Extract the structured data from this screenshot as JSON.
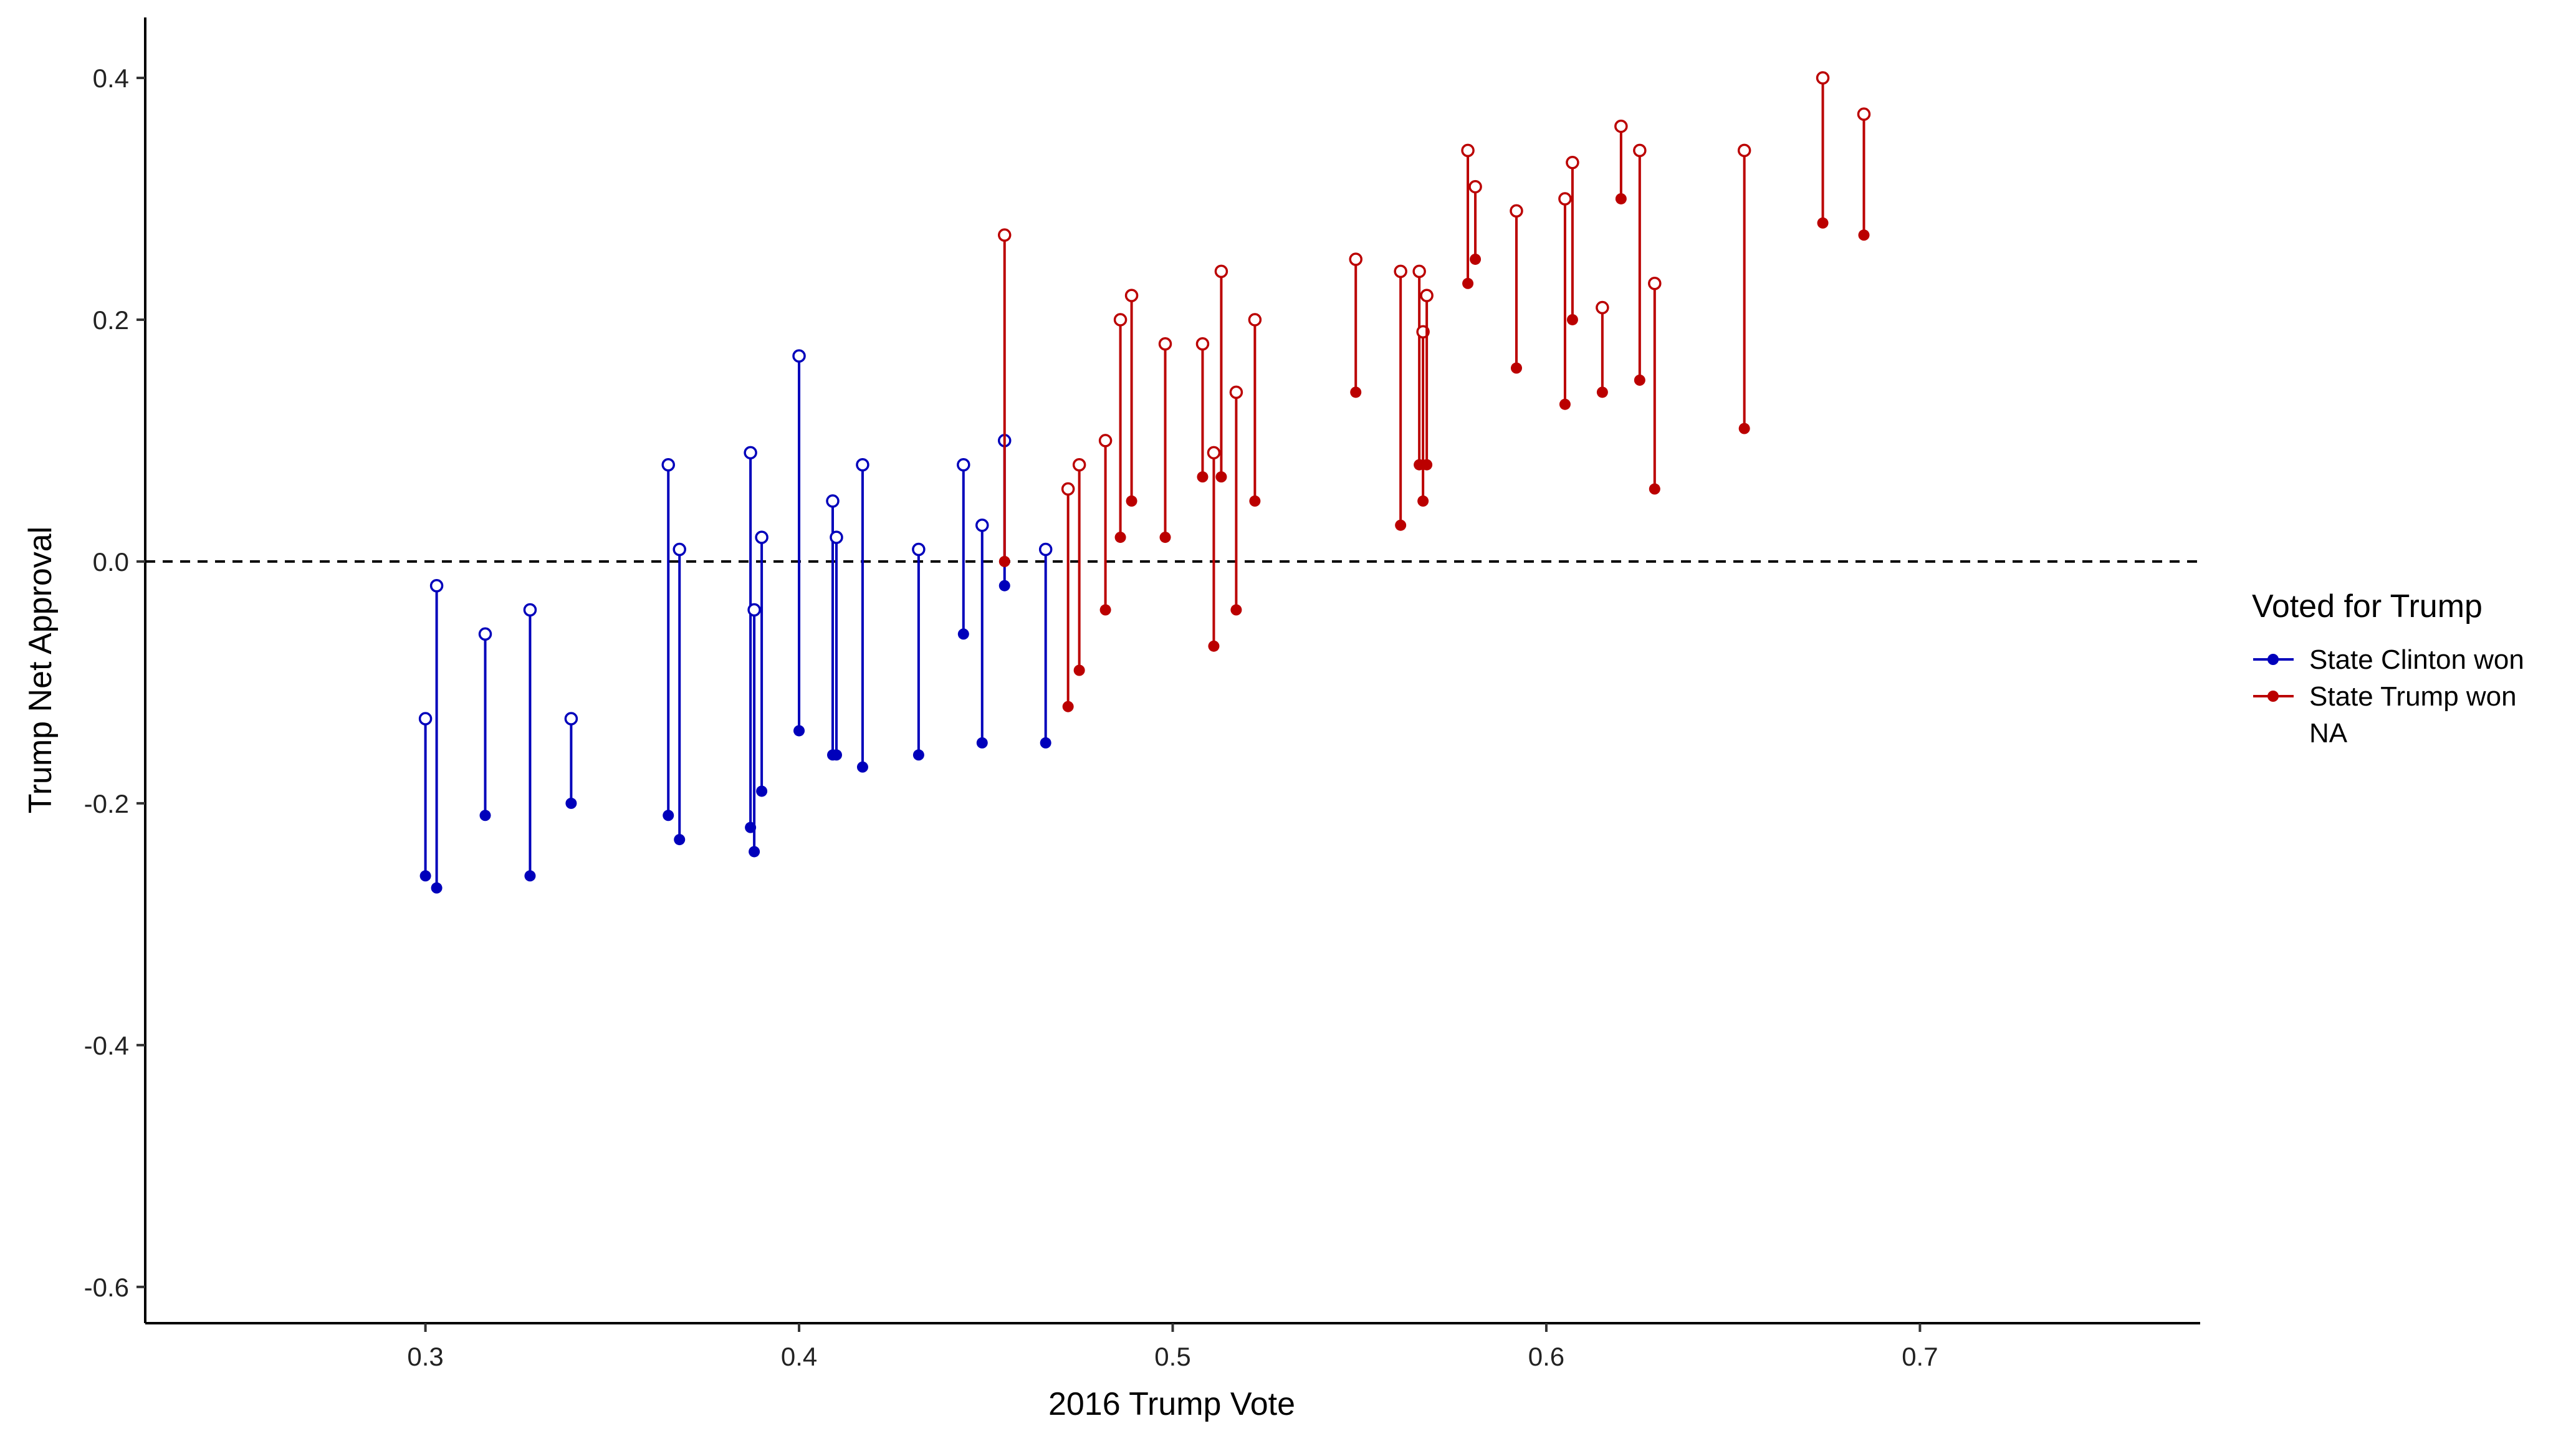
{
  "chart_data": {
    "type": "scatter",
    "title": "",
    "xlabel": "2016 Trump Vote",
    "ylabel": "Trump Net Approval",
    "xlim": [
      0.225,
      0.775
    ],
    "ylim": [
      -0.63,
      0.45
    ],
    "xticks": [
      0.3,
      0.4,
      0.5,
      0.6,
      0.7
    ],
    "yticks": [
      -0.6,
      -0.4,
      -0.2,
      0.0,
      0.2,
      0.4
    ],
    "xtick_labels": [
      "0.3",
      "0.4",
      "0.5",
      "0.6",
      "0.7"
    ],
    "ytick_labels": [
      "-0.6",
      "-0.4",
      "-0.2",
      "0.0",
      "0.2",
      "0.4"
    ],
    "reference_line": {
      "y": 0.0,
      "style": "dashed"
    },
    "grid": false,
    "legend": {
      "title": "Voted for Trump",
      "placement": "right",
      "entries": [
        {
          "label": "State Clinton won",
          "color": "#0000BB"
        },
        {
          "label": "State Trump won",
          "color": "#BB0000"
        },
        {
          "label": "NA",
          "color": ""
        }
      ]
    },
    "series": [
      {
        "name": "State Clinton won",
        "color": "#0000BB",
        "points": [
          {
            "x": 0.3,
            "open": -0.13,
            "filled": -0.26
          },
          {
            "x": 0.303,
            "open": -0.02,
            "filled": -0.27
          },
          {
            "x": 0.316,
            "open": -0.06,
            "filled": -0.21
          },
          {
            "x": 0.328,
            "open": -0.04,
            "filled": -0.26
          },
          {
            "x": 0.339,
            "open": -0.13,
            "filled": -0.2
          },
          {
            "x": 0.365,
            "open": 0.08,
            "filled": -0.21
          },
          {
            "x": 0.368,
            "open": 0.01,
            "filled": -0.23
          },
          {
            "x": 0.387,
            "open": 0.09,
            "filled": -0.22
          },
          {
            "x": 0.388,
            "open": -0.04,
            "filled": -0.24
          },
          {
            "x": 0.39,
            "open": 0.02,
            "filled": -0.19
          },
          {
            "x": 0.4,
            "open": 0.17,
            "filled": -0.14
          },
          {
            "x": 0.409,
            "open": 0.05,
            "filled": -0.16
          },
          {
            "x": 0.41,
            "open": 0.02,
            "filled": -0.16
          },
          {
            "x": 0.417,
            "open": 0.08,
            "filled": -0.17
          },
          {
            "x": 0.432,
            "open": 0.01,
            "filled": -0.16
          },
          {
            "x": 0.444,
            "open": 0.08,
            "filled": -0.06
          },
          {
            "x": 0.449,
            "open": 0.03,
            "filled": -0.15
          },
          {
            "x": 0.455,
            "open": 0.1,
            "filled": -0.02
          },
          {
            "x": 0.466,
            "open": 0.01,
            "filled": -0.15
          }
        ]
      },
      {
        "name": "State Trump won",
        "color": "#BB0000",
        "points": [
          {
            "x": 0.455,
            "open": 0.27,
            "filled": 0.0
          },
          {
            "x": 0.472,
            "open": 0.06,
            "filled": -0.12
          },
          {
            "x": 0.475,
            "open": 0.08,
            "filled": -0.09
          },
          {
            "x": 0.482,
            "open": 0.1,
            "filled": -0.04
          },
          {
            "x": 0.486,
            "open": 0.2,
            "filled": 0.02
          },
          {
            "x": 0.489,
            "open": 0.22,
            "filled": 0.05
          },
          {
            "x": 0.498,
            "open": 0.18,
            "filled": 0.02
          },
          {
            "x": 0.508,
            "open": 0.18,
            "filled": 0.07
          },
          {
            "x": 0.511,
            "open": 0.09,
            "filled": -0.07
          },
          {
            "x": 0.513,
            "open": 0.24,
            "filled": 0.07
          },
          {
            "x": 0.517,
            "open": 0.14,
            "filled": -0.04
          },
          {
            "x": 0.522,
            "open": 0.2,
            "filled": 0.05
          },
          {
            "x": 0.549,
            "open": 0.25,
            "filled": 0.14
          },
          {
            "x": 0.561,
            "open": 0.24,
            "filled": 0.03
          },
          {
            "x": 0.566,
            "open": 0.24,
            "filled": 0.08
          },
          {
            "x": 0.567,
            "open": 0.19,
            "filled": 0.05
          },
          {
            "x": 0.568,
            "open": 0.22,
            "filled": 0.08
          },
          {
            "x": 0.579,
            "open": 0.34,
            "filled": 0.23
          },
          {
            "x": 0.581,
            "open": 0.31,
            "filled": 0.25
          },
          {
            "x": 0.592,
            "open": 0.29,
            "filled": 0.16
          },
          {
            "x": 0.605,
            "open": 0.3,
            "filled": 0.13
          },
          {
            "x": 0.607,
            "open": 0.33,
            "filled": 0.2
          },
          {
            "x": 0.615,
            "open": 0.21,
            "filled": 0.14
          },
          {
            "x": 0.62,
            "open": 0.36,
            "filled": 0.3
          },
          {
            "x": 0.625,
            "open": 0.34,
            "filled": 0.15
          },
          {
            "x": 0.629,
            "open": 0.23,
            "filled": 0.06
          },
          {
            "x": 0.653,
            "open": 0.34,
            "filled": 0.11
          },
          {
            "x": 0.674,
            "open": 0.4,
            "filled": 0.28
          },
          {
            "x": 0.685,
            "open": 0.37,
            "filled": 0.27
          }
        ]
      }
    ]
  }
}
